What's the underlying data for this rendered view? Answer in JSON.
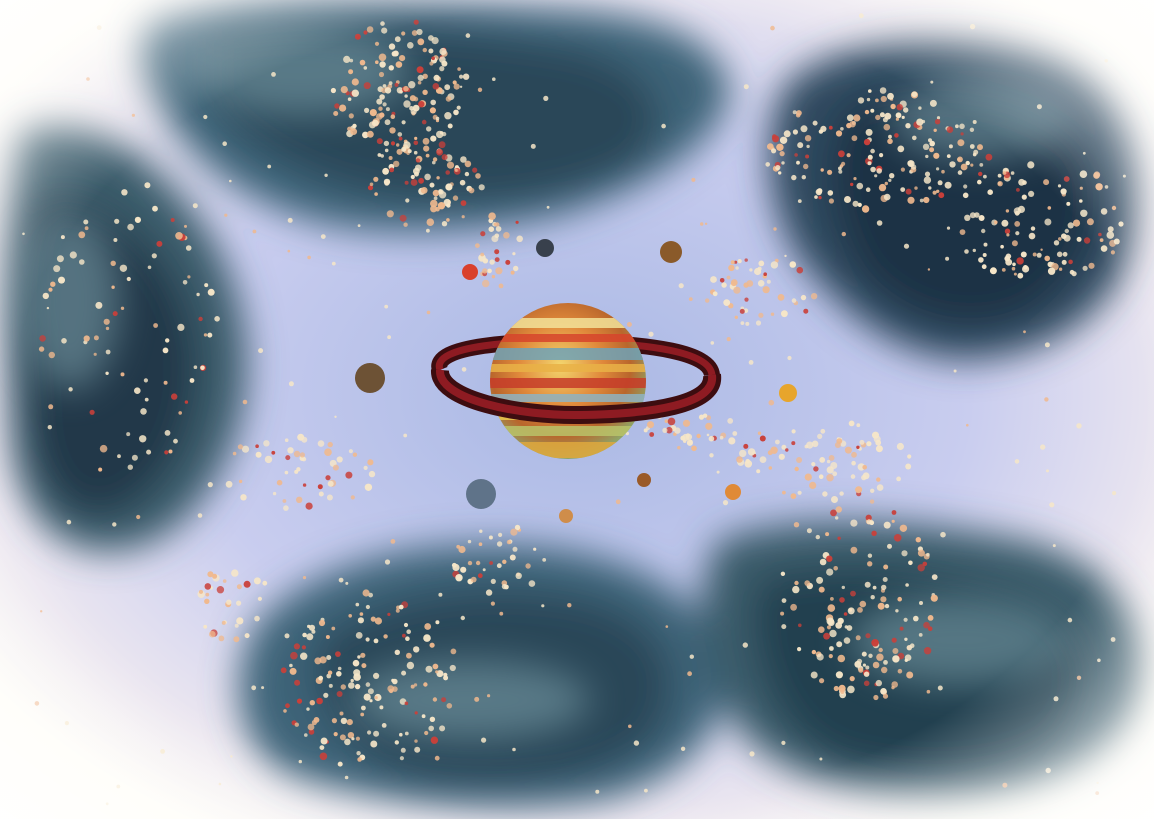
{
  "artwork": {
    "kind": "painting",
    "colors": {
      "background_edge": "#fffdf6",
      "sky_center": "#a9b8e4",
      "sky_mid": "#c9cdef",
      "nebula_dark": "#1f3345",
      "nebula_mid": "#3e6478",
      "nebula_light": "#7fa3ad",
      "dot_cream": "#f6e6c8",
      "dot_peach": "#f0b98e",
      "dot_red": "#c9403a",
      "ring_dark": "#3d0d10",
      "ring_red": "#8e1b22"
    },
    "planets": [
      {
        "name": "ringed-planet",
        "color": "#d8a24a"
      },
      {
        "name": "dark-planet",
        "color": "#38404c"
      },
      {
        "name": "brown-planet",
        "color": "#8a5a2a"
      },
      {
        "name": "small-red-planet",
        "color": "#d9402c"
      },
      {
        "name": "left-brown-planet",
        "color": "#6d5235"
      },
      {
        "name": "gold-planet",
        "color": "#e7a52c"
      },
      {
        "name": "blue-gray-planet",
        "color": "#5f7389"
      },
      {
        "name": "small-brown-planet",
        "color": "#9a5a28"
      },
      {
        "name": "small-orange-planet",
        "color": "#e08a37"
      },
      {
        "name": "small-tan-planet",
        "color": "#cf8d4a"
      }
    ]
  }
}
